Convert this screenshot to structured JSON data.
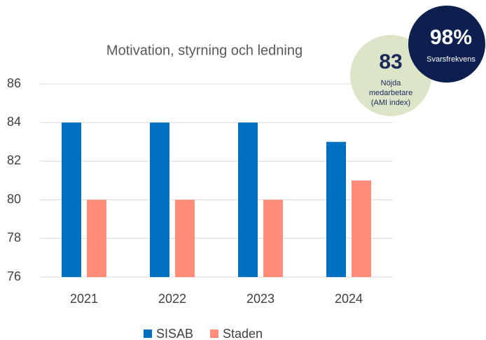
{
  "chart_data": {
    "type": "bar",
    "title": "Motivation, styrning och ledning",
    "categories": [
      "2021",
      "2022",
      "2023",
      "2024"
    ],
    "series": [
      {
        "name": "SISAB",
        "color": "#0070c0",
        "values": [
          84,
          84,
          84,
          83
        ]
      },
      {
        "name": "Staden",
        "color": "#ff8c78",
        "values": [
          80,
          80,
          80,
          81
        ]
      }
    ],
    "ylim": [
      76,
      86
    ],
    "yticks": [
      76,
      78,
      80,
      82,
      84,
      86
    ],
    "grid": true,
    "annotations": [
      {
        "text": "83",
        "lines": [
          "Nöjda",
          "medarbetare",
          "(AMI index)"
        ]
      },
      {
        "text": "98%",
        "lines": [
          "Svarsfrekvens"
        ]
      }
    ]
  }
}
